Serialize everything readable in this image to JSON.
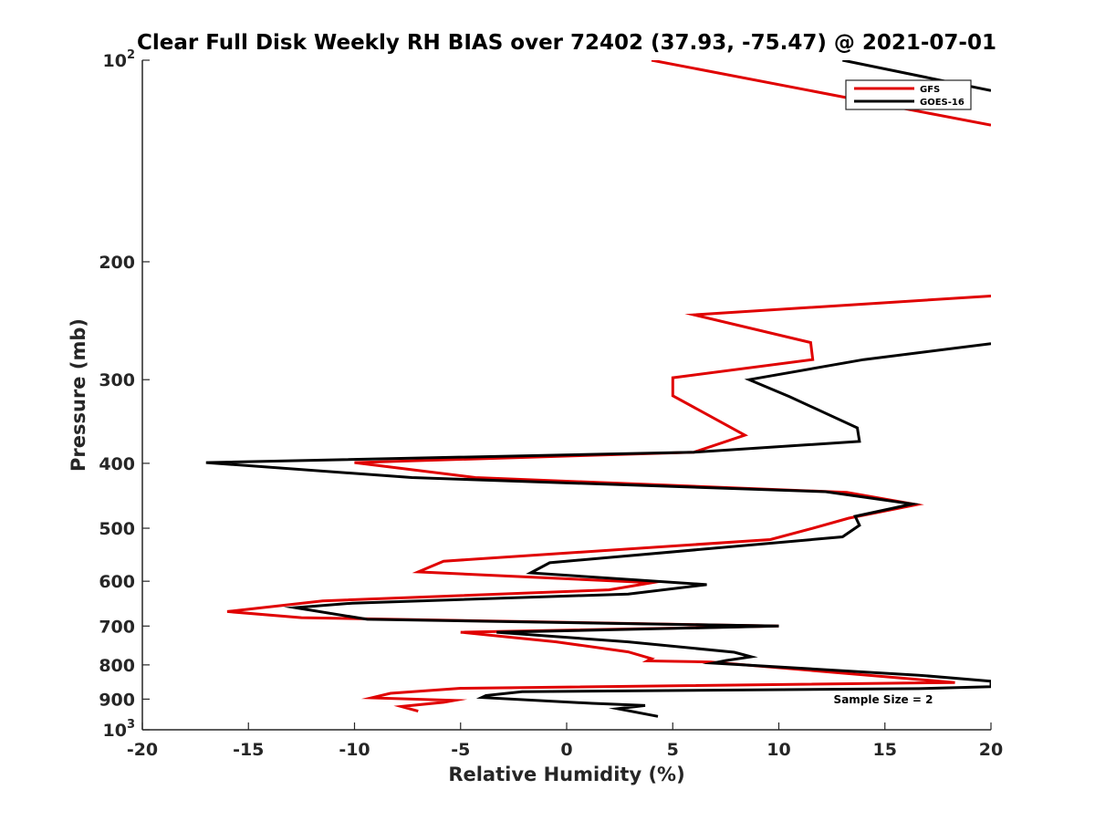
{
  "chart_data": {
    "type": "line",
    "title": "Clear Full Disk Weekly RH BIAS over 72402 (37.93, -75.47) @ 2021-07-01",
    "xlabel": "Relative Humidity (%)",
    "ylabel": "Pressure (mb)",
    "xlim": [
      -20,
      20
    ],
    "ylim": [
      100,
      1000
    ],
    "yscale": "log",
    "y_reversed": true,
    "x_ticks": [
      {
        "value": -20,
        "label": "-20"
      },
      {
        "value": -15,
        "label": "-15"
      },
      {
        "value": -10,
        "label": "-10"
      },
      {
        "value": -5,
        "label": "-5"
      },
      {
        "value": 0,
        "label": "0"
      },
      {
        "value": 5,
        "label": "5"
      },
      {
        "value": 10,
        "label": "10"
      },
      {
        "value": 15,
        "label": "15"
      },
      {
        "value": 20,
        "label": "20"
      }
    ],
    "y_ticks": [
      {
        "value": 100,
        "label": "10",
        "exp": "2"
      },
      {
        "value": 200,
        "label": "200",
        "exp": ""
      },
      {
        "value": 300,
        "label": "300",
        "exp": ""
      },
      {
        "value": 400,
        "label": "400",
        "exp": ""
      },
      {
        "value": 500,
        "label": "500",
        "exp": ""
      },
      {
        "value": 600,
        "label": "600",
        "exp": ""
      },
      {
        "value": 700,
        "label": "700",
        "exp": ""
      },
      {
        "value": 800,
        "label": "800",
        "exp": ""
      },
      {
        "value": 900,
        "label": "900",
        "exp": ""
      },
      {
        "value": 1000,
        "label": "10",
        "exp": "3"
      }
    ],
    "legend_position": "top-right",
    "annotation": "Sample Size = 2",
    "series": [
      {
        "name": "GFS",
        "color": "#e00000",
        "points": [
          [
            4,
            100
          ],
          [
            14,
            115
          ],
          [
            20,
            125
          ],
          [
            null,
            150
          ],
          [
            20,
            225
          ],
          [
            6,
            240
          ],
          [
            11.5,
            264
          ],
          [
            11.6,
            280
          ],
          [
            5,
            298
          ],
          [
            5,
            317
          ],
          [
            8.4,
            363
          ],
          [
            6,
            385
          ],
          [
            -10,
            399
          ],
          [
            -4.3,
            420
          ],
          [
            13.2,
            442
          ],
          [
            16.5,
            461
          ],
          [
            13.3,
            483
          ],
          [
            11.5,
            501
          ],
          [
            9.6,
            520
          ],
          [
            -5.8,
            560
          ],
          [
            -7,
            581
          ],
          [
            4,
            603
          ],
          [
            2,
            618
          ],
          [
            -11.5,
            642
          ],
          [
            -16,
            666
          ],
          [
            -12.5,
            680
          ],
          [
            10,
            700
          ],
          [
            -5,
            715
          ],
          [
            -0.5,
            739
          ],
          [
            2.9,
            765
          ],
          [
            4,
            783
          ],
          [
            3.8,
            789
          ],
          [
            6.8,
            792
          ],
          [
            18.3,
            850
          ],
          [
            -5,
            867
          ],
          [
            -8.3,
            882
          ],
          [
            -9.2,
            896
          ],
          [
            -5.3,
            904
          ],
          [
            -5.8,
            910
          ],
          [
            -7.8,
            923
          ],
          [
            -7,
            938
          ]
        ]
      },
      {
        "name": "GOES-16",
        "color": "#000000",
        "points": [
          [
            13,
            100
          ],
          [
            20,
            111
          ],
          [
            null,
            150
          ],
          [
            20,
            265
          ],
          [
            14,
            280
          ],
          [
            8.6,
            300
          ],
          [
            10.5,
            318
          ],
          [
            13.7,
            354
          ],
          [
            13.8,
            371
          ],
          [
            6,
            385
          ],
          [
            -17,
            399
          ],
          [
            -7.3,
            420
          ],
          [
            12.2,
            441
          ],
          [
            16.3,
            460
          ],
          [
            13.6,
            480
          ],
          [
            13.8,
            495
          ],
          [
            13,
            515
          ],
          [
            -0.8,
            563
          ],
          [
            -1.7,
            583
          ],
          [
            6.6,
            607
          ],
          [
            2.9,
            627
          ],
          [
            -10.1,
            647
          ],
          [
            -12.8,
            657
          ],
          [
            -9.4,
            684
          ],
          [
            10,
            700
          ],
          [
            -3.3,
            715
          ],
          [
            2.9,
            739
          ],
          [
            7.9,
            766
          ],
          [
            8.7,
            778
          ],
          [
            7.5,
            788
          ],
          [
            6.9,
            795
          ],
          [
            16.6,
            829
          ],
          [
            20,
            846
          ],
          [
            20,
            862
          ],
          [
            16.6,
            868
          ],
          [
            -2.1,
            877
          ],
          [
            -3.8,
            889
          ],
          [
            -4,
            895
          ],
          [
            1.2,
            913
          ],
          [
            3.7,
            920
          ],
          [
            2.4,
            930
          ],
          [
            4.3,
            955
          ]
        ]
      }
    ]
  }
}
